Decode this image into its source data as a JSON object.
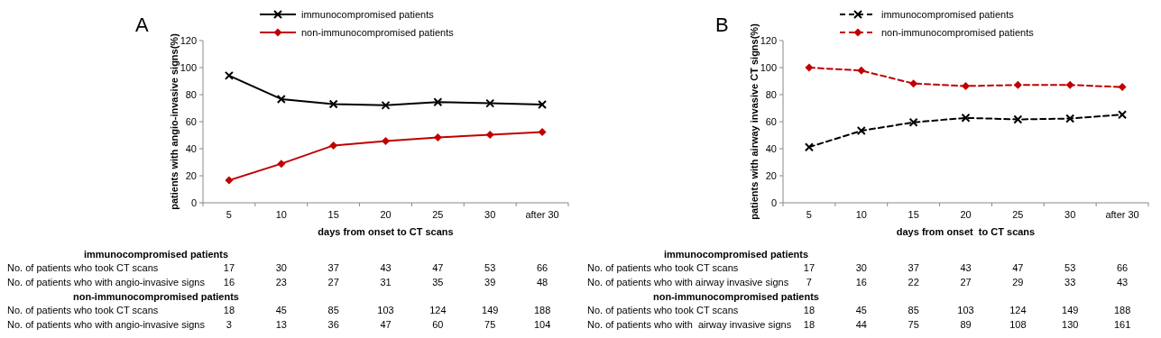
{
  "chart_data": [
    {
      "type": "line",
      "title": "A",
      "xlabel": "days from onset to CT scans",
      "ylabel": "patients with angio-invasive signs(%)",
      "categories": [
        "5",
        "10",
        "15",
        "20",
        "25",
        "30",
        "after 30"
      ],
      "series": [
        {
          "name": "immunocompromised patients",
          "color": "#000000",
          "marker": "cross",
          "values": [
            94.1,
            76.7,
            73,
            72.1,
            74.5,
            73.6,
            72.7
          ]
        },
        {
          "name": "non-immunocompromised patients",
          "color": "#c00000",
          "marker": "diamond",
          "values": [
            16.7,
            28.9,
            42.4,
            45.6,
            48.4,
            50.3,
            52.3
          ]
        }
      ],
      "ylim": [
        0,
        120
      ],
      "yticks": [
        0,
        20,
        40,
        60,
        80,
        100,
        120
      ],
      "grid": false,
      "legend": "top",
      "line_style": "solid",
      "annotations": [
        "immunocompromised patients",
        "No. of patients who took CT scans",
        "17",
        "30",
        "37",
        "43",
        "47",
        "53",
        "66",
        "No. of patients who with angio-invasive signs",
        "16",
        "23",
        "27",
        "31",
        "35",
        "39",
        "48",
        "non-immunocompromised patients",
        "No. of patients who took CT scans",
        "18",
        "45",
        "85",
        "103",
        "124",
        "149",
        "188",
        "No. of patients who with angio-invasive signs",
        "3",
        "13",
        "36",
        "47",
        "60",
        "75",
        "104"
      ]
    },
    {
      "type": "line",
      "title": "B",
      "xlabel": "days from onset  to CT scans",
      "ylabel": "patients with airway invasive CT signs(%)",
      "categories": [
        "5",
        "10",
        "15",
        "20",
        "25",
        "30",
        "after 30"
      ],
      "series": [
        {
          "name": "immunocompromised patients",
          "color": "#000000",
          "marker": "cross",
          "values": [
            41.2,
            53.3,
            59.5,
            62.8,
            61.7,
            62.3,
            65.2
          ]
        },
        {
          "name": "non-immunocompromised patients",
          "color": "#c00000",
          "marker": "diamond",
          "values": [
            100,
            97.8,
            88.2,
            86.4,
            87.1,
            87.2,
            85.6
          ]
        }
      ],
      "ylim": [
        0,
        120
      ],
      "yticks": [
        0,
        20,
        40,
        60,
        80,
        100,
        120
      ],
      "grid": false,
      "legend": "top",
      "line_style": "dashed",
      "annotations": [
        "immunocompromised patients",
        "No. of patients who took CT scans",
        "17",
        "30",
        "37",
        "43",
        "47",
        "53",
        "66",
        "No. of patients who with airway invasive signs",
        "7",
        "16",
        "22",
        "27",
        "29",
        "33",
        "43",
        "non-immunocompromised patients",
        "No. of patients who took CT scans",
        "18",
        "45",
        "85",
        "103",
        "124",
        "149",
        "188",
        "No. of patients who with  airway invasive signs",
        "18",
        "44",
        "75",
        "89",
        "108",
        "130",
        "161"
      ]
    }
  ]
}
